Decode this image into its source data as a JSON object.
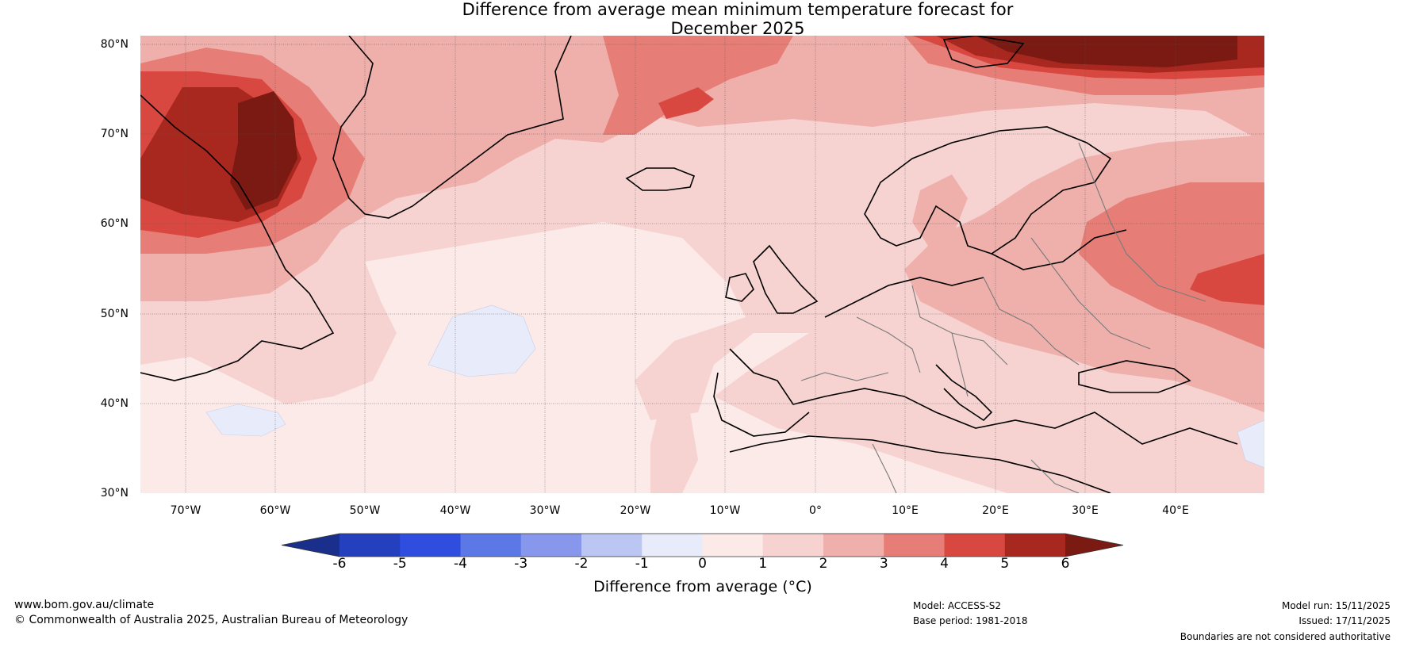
{
  "title": {
    "line1": "Difference from average mean minimum temperature forecast for",
    "line2": "December 2025"
  },
  "map": {
    "lat_labels": [
      "80°N",
      "70°N",
      "60°N",
      "50°N",
      "40°N",
      "30°N"
    ],
    "lon_labels": [
      "70°W",
      "60°W",
      "50°W",
      "40°W",
      "30°W",
      "20°W",
      "10°W",
      "0°",
      "10°E",
      "20°E",
      "30°E",
      "40°E"
    ]
  },
  "colorbar": {
    "title": "Difference from average (°C)",
    "ticks": [
      "-6",
      "-5",
      "-4",
      "-3",
      "-2",
      "-1",
      "0",
      "1",
      "2",
      "3",
      "4",
      "5",
      "6"
    ],
    "colors": [
      "#1a2e8c",
      "#2540bf",
      "#2f4ee0",
      "#5c77e6",
      "#8797ec",
      "#bcc6f2",
      "#e8ecfa",
      "#fceae8",
      "#f6d3d1",
      "#efafab",
      "#e67e77",
      "#d94840",
      "#a8281f",
      "#7a1a13"
    ]
  },
  "footer": {
    "site": "www.bom.gov.au/climate",
    "copyright": "© Commonwealth of Australia 2025, Australian Bureau of Meteorology",
    "model": "Model: ACCESS-S2",
    "base_period": "Base period: 1981-2018",
    "model_run": "Model run: 15/11/2025",
    "issued": "Issued: 17/11/2025",
    "disclaimer": "Boundaries are not considered authoritative"
  }
}
